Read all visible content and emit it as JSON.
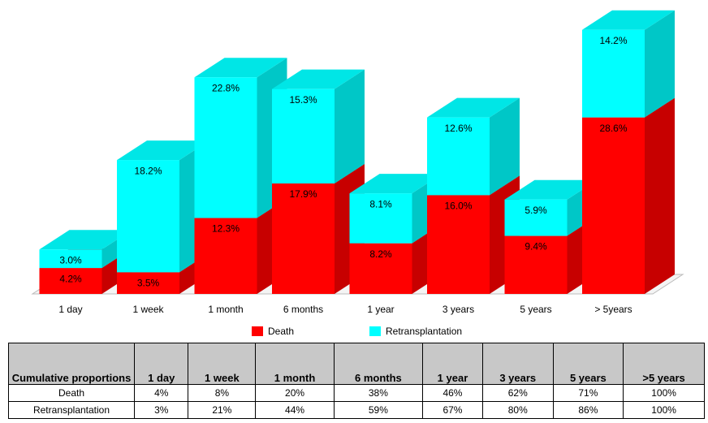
{
  "chart_data": {
    "type": "bar3d_stacked",
    "categories": [
      "1 day",
      "1 week",
      "1 month",
      "6 months",
      "1 year",
      "3 years",
      "5 years",
      "> 5years"
    ],
    "series": [
      {
        "name": "Death",
        "color": "#ff0000",
        "values": [
          4.2,
          3.5,
          12.3,
          17.9,
          8.2,
          16.0,
          9.4,
          28.6
        ],
        "value_labels": [
          "4.2%",
          "3.5%",
          "12.3%",
          "17.9%",
          "8.2%",
          "16.0%",
          "9.4%",
          "28.6%"
        ]
      },
      {
        "name": "Retransplantation",
        "color": "#00ffff",
        "values": [
          3.0,
          18.2,
          22.8,
          15.3,
          8.1,
          12.6,
          5.9,
          14.2
        ],
        "value_labels": [
          "3.0%",
          "18.2%",
          "22.8%",
          "15.3%",
          "8.1%",
          "12.6%",
          "5.9%",
          "14.2%"
        ]
      }
    ]
  },
  "table": {
    "header": [
      "Cumulative proportions",
      "1 day",
      "1 week",
      "1 month",
      "6 months",
      "1 year",
      "3 years",
      "5 years",
      ">5 years"
    ],
    "rows": [
      [
        "Death",
        "4%",
        "8%",
        "20%",
        "38%",
        "46%",
        "62%",
        "71%",
        "100%"
      ],
      [
        "Retransplantation",
        "3%",
        "21%",
        "44%",
        "59%",
        "67%",
        "80%",
        "86%",
        "100%"
      ]
    ]
  }
}
